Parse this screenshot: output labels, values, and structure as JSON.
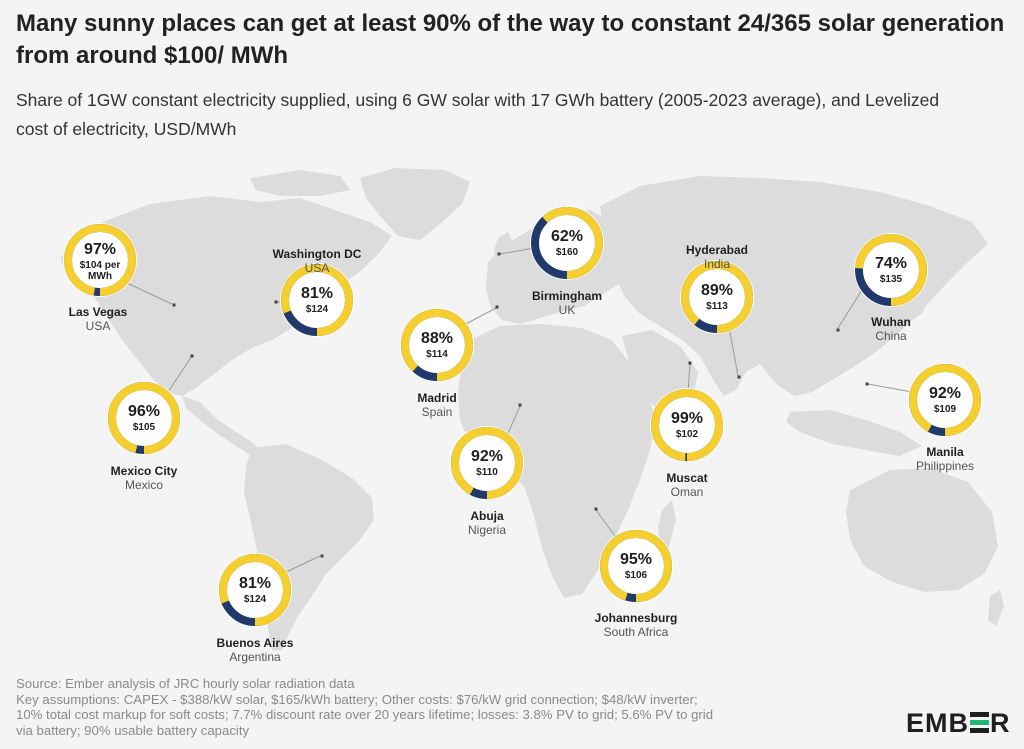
{
  "title": "Many sunny places can get at least 90% of the way to constant 24/365 solar generation from around $100/ MWh",
  "subtitle": "Share of 1GW constant electricity supplied, using 6 GW solar with 17 GWh battery (2005-2023 average), and Levelized cost of electricity, USD/MWh",
  "footer": {
    "source": "Source: Ember analysis of JRC hourly solar radiation data",
    "line2": "Key assumptions: CAPEX - $388/kW solar, $165/kWh battery; Other costs: $76/kW grid connection; $48/kW inverter;",
    "line3": "10% total cost markup for soft costs; 7.7% discount rate over 20 years lifetime; losses: 3.8% PV to grid; 5.6% PV to grid",
    "line4": "via battery; 90% usable battery capacity"
  },
  "logo": {
    "text_left": "EMB",
    "text_right": "R"
  },
  "colors": {
    "filled": "#f4cf2f",
    "remainder": "#223a6b",
    "map": "#dcdcdc",
    "background": "#f4f4f4"
  },
  "chart_data": {
    "type": "map-donut",
    "series": [
      {
        "name": "Share supplied",
        "unit": "%"
      },
      {
        "name": "LCOE",
        "unit": "USD/MWh"
      }
    ],
    "locations": [
      {
        "city": "Las Vegas",
        "country": "USA",
        "share": 97,
        "label": "97%",
        "cost": "$104 per",
        "cost2": "MWh"
      },
      {
        "city": "Washington DC",
        "country": "USA",
        "share": 81,
        "label": "81%",
        "cost": "$124"
      },
      {
        "city": "Mexico City",
        "country": "Mexico",
        "share": 96,
        "label": "96%",
        "cost": "$105"
      },
      {
        "city": "Buenos Aires",
        "country": "Argentina",
        "share": 81,
        "label": "81%",
        "cost": "$124"
      },
      {
        "city": "Madrid",
        "country": "Spain",
        "share": 88,
        "label": "88%",
        "cost": "$114"
      },
      {
        "city": "Birmingham",
        "country": "UK",
        "share": 62,
        "label": "62%",
        "cost": "$160"
      },
      {
        "city": "Abuja",
        "country": "Nigeria",
        "share": 92,
        "label": "92%",
        "cost": "$110"
      },
      {
        "city": "Johannesburg",
        "country": "South Africa",
        "share": 95,
        "label": "95%",
        "cost": "$106"
      },
      {
        "city": "Hyderabad",
        "country": "India",
        "share": 89,
        "label": "89%",
        "cost": "$113"
      },
      {
        "city": "Muscat",
        "country": "Oman",
        "share": 99,
        "label": "99%",
        "cost": "$102"
      },
      {
        "city": "Wuhan",
        "country": "China",
        "share": 74,
        "label": "74%",
        "cost": "$135"
      },
      {
        "city": "Manila",
        "country": "Philippines",
        "share": 92,
        "label": "92%",
        "cost": "$109"
      }
    ]
  }
}
